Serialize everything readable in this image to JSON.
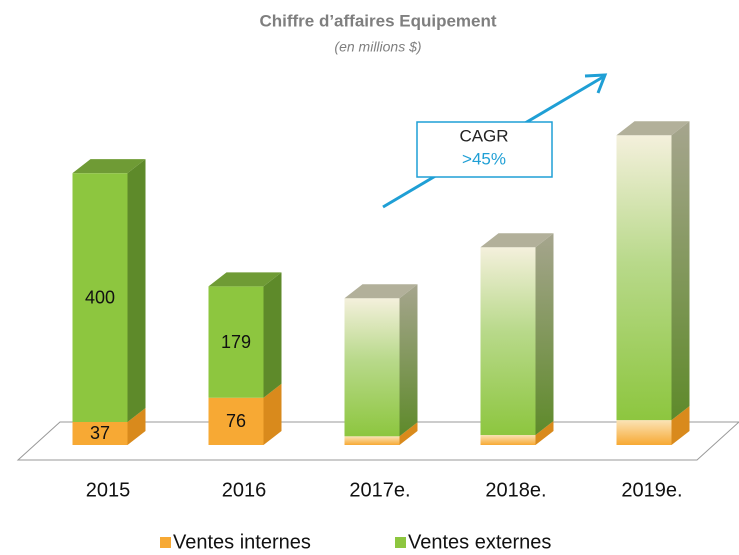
{
  "chart_data": {
    "type": "bar3d_stacked",
    "title": "Chiffre d’affaires Equipement",
    "subtitle": "(en millions $)",
    "categories": [
      "2015",
      "2016",
      "2017e.",
      "2018e.",
      "2019e."
    ],
    "series": [
      {
        "name": "Ventes internes",
        "color": "#f7a934",
        "values": [
          37,
          76,
          14,
          16,
          40
        ],
        "value_labels": [
          "37",
          "76",
          null,
          null,
          null
        ]
      },
      {
        "name": "Ventes externes",
        "color": "#8dc63f",
        "values": [
          400,
          179,
          222,
          302,
          458
        ],
        "value_labels": [
          "400",
          "179",
          null,
          null,
          null
        ]
      }
    ],
    "ylim": [
      0,
      500
    ],
    "annotation": {
      "title": "CAGR",
      "text": ">45%"
    }
  }
}
